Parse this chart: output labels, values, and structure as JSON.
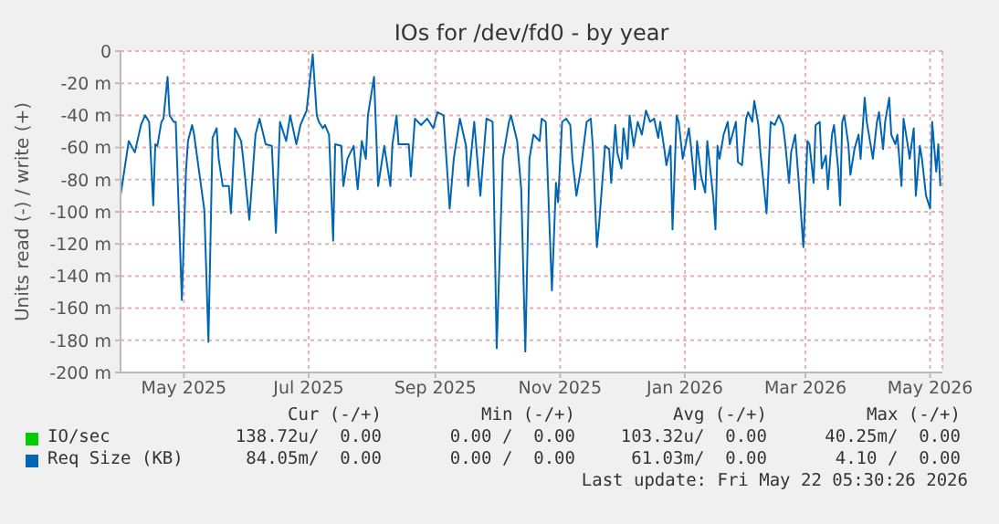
{
  "chart_data": {
    "type": "line",
    "title": "IOs for /dev/fd0 - by year",
    "ylabel": "Units read (-) / write (+)",
    "xlim": [
      "2025-04-15",
      "2026-05-22"
    ],
    "xticks": [
      {
        "value": "2025-05-16",
        "label": "May 2025"
      },
      {
        "value": "2025-07-16",
        "label": "Jul 2025"
      },
      {
        "value": "2025-09-16",
        "label": "Sep 2025"
      },
      {
        "value": "2025-11-16",
        "label": "Nov 2025"
      },
      {
        "value": "2026-01-16",
        "label": "Jan 2026"
      },
      {
        "value": "2026-03-16",
        "label": "Mar 2026"
      },
      {
        "value": "2026-05-16",
        "label": "May 2026"
      }
    ],
    "ylim": [
      -200,
      0
    ],
    "yticks": [
      {
        "value": -200,
        "label": "-200 m"
      },
      {
        "value": -180,
        "label": "-180 m"
      },
      {
        "value": -160,
        "label": "-160 m"
      },
      {
        "value": -140,
        "label": "-140 m"
      },
      {
        "value": -120,
        "label": "-120 m"
      },
      {
        "value": -100,
        "label": "-100 m"
      },
      {
        "value": -80,
        "label": "-80 m"
      },
      {
        "value": -60,
        "label": "-60 m"
      },
      {
        "value": -40,
        "label": "-40 m"
      },
      {
        "value": -20,
        "label": "-20 m"
      },
      0
    ],
    "grid": true,
    "legend": "bottom",
    "marker": "none",
    "line_style": "solid",
    "series": [
      {
        "name": "IO/sec",
        "color": "#00cc00"
      },
      {
        "name": "Req Size (KB)",
        "color": "#0066b3",
        "x": [
          "2025-04-15",
          "2025-04-17",
          "2025-04-19",
          "2025-04-22",
          "2025-04-25",
          "2025-04-27",
          "2025-04-29",
          "2025-05-01",
          "2025-05-02",
          "2025-05-03",
          "2025-05-05",
          "2025-05-06",
          "2025-05-08",
          "2025-05-09",
          "2025-05-11",
          "2025-05-12",
          "2025-05-15",
          "2025-05-17",
          "2025-05-18",
          "2025-05-20",
          "2025-05-21",
          "2025-05-23",
          "2025-05-26",
          "2025-05-28",
          "2025-05-30",
          "2025-06-01",
          "2025-06-02",
          "2025-06-04",
          "2025-06-07",
          "2025-06-08",
          "2025-06-10",
          "2025-06-13",
          "2025-06-14",
          "2025-06-17",
          "2025-06-20",
          "2025-06-22",
          "2025-06-25",
          "2025-06-28",
          "2025-06-30",
          "2025-07-02",
          "2025-07-05",
          "2025-07-07",
          "2025-07-10",
          "2025-07-12",
          "2025-07-15",
          "2025-07-18",
          "2025-07-20",
          "2025-07-21",
          "2025-07-23",
          "2025-07-24",
          "2025-07-26",
          "2025-07-28",
          "2025-07-29",
          "2025-08-01",
          "2025-08-02",
          "2025-08-04",
          "2025-08-07",
          "2025-08-09",
          "2025-08-11",
          "2025-08-13",
          "2025-08-14",
          "2025-08-17",
          "2025-08-19",
          "2025-08-22",
          "2025-08-25",
          "2025-08-26",
          "2025-08-28",
          "2025-08-29",
          "2025-09-03",
          "2025-09-04",
          "2025-09-06",
          "2025-09-09",
          "2025-09-12",
          "2025-09-15",
          "2025-09-17",
          "2025-09-20",
          "2025-09-23",
          "2025-09-25",
          "2025-09-28",
          "2025-10-01",
          "2025-10-02",
          "2025-10-05",
          "2025-10-08",
          "2025-10-11",
          "2025-10-14",
          "2025-10-16",
          "2025-10-19",
          "2025-10-22",
          "2025-10-23",
          "2025-10-26",
          "2025-10-28",
          "2025-10-30",
          "2025-11-01",
          "2025-11-03",
          "2025-11-06",
          "2025-11-07",
          "2025-11-09",
          "2025-11-10",
          "2025-11-12",
          "2025-11-14",
          "2025-11-15",
          "2025-11-17",
          "2025-11-19",
          "2025-11-21",
          "2025-11-22",
          "2025-11-24",
          "2025-11-26",
          "2025-11-29",
          "2025-12-01",
          "2025-12-02",
          "2025-12-04",
          "2025-12-05",
          "2025-12-08",
          "2025-12-10",
          "2025-12-11",
          "2025-12-13",
          "2025-12-14",
          "2025-12-16",
          "2025-12-17",
          "2025-12-19",
          "2025-12-20",
          "2025-12-22",
          "2025-12-24",
          "2025-12-26",
          "2025-12-28",
          "2025-12-30",
          "2026-01-01",
          "2026-01-03",
          "2026-01-04",
          "2026-01-06",
          "2026-01-07",
          "2026-01-09",
          "2026-01-10",
          "2026-01-12",
          "2026-01-13",
          "2026-01-15",
          "2026-01-18",
          "2026-01-19",
          "2026-01-21",
          "2026-01-22",
          "2026-01-24",
          "2026-01-26",
          "2026-01-27",
          "2026-01-30",
          "2026-01-31",
          "2026-02-01",
          "2026-02-02",
          "2026-02-04",
          "2026-02-06",
          "2026-02-07",
          "2026-02-10",
          "2026-02-11",
          "2026-02-13",
          "2026-02-15",
          "2026-02-16",
          "2026-02-18",
          "2026-02-19",
          "2026-02-21",
          "2026-02-22",
          "2026-02-25",
          "2026-02-27",
          "2026-03-01",
          "2026-03-03",
          "2026-03-05",
          "2026-03-06",
          "2026-03-08",
          "2026-03-09",
          "2026-03-11",
          "2026-03-13",
          "2026-03-15",
          "2026-03-17",
          "2026-03-18",
          "2026-03-20",
          "2026-03-21",
          "2026-03-23",
          "2026-03-24",
          "2026-03-26",
          "2026-03-27",
          "2026-03-29",
          "2026-03-30",
          "2026-04-01",
          "2026-04-02",
          "2026-04-03",
          "2026-04-04",
          "2026-04-06",
          "2026-04-07",
          "2026-04-09",
          "2026-04-11",
          "2026-04-12",
          "2026-04-14",
          "2026-04-15",
          "2026-04-17",
          "2026-04-18",
          "2026-04-20",
          "2026-04-21",
          "2026-04-23",
          "2026-04-24",
          "2026-04-26",
          "2026-04-27",
          "2026-04-29",
          "2026-04-30",
          "2026-05-02",
          "2026-05-03",
          "2026-05-05",
          "2026-05-06",
          "2026-05-08",
          "2026-05-09",
          "2026-05-11",
          "2026-05-12",
          "2026-05-14",
          "2026-05-16",
          "2026-05-17",
          "2026-05-19",
          "2026-05-20",
          "2026-05-21"
        ],
        "values": [
          -90,
          -73,
          -56,
          -63,
          -46,
          -40,
          -44,
          -96,
          -58,
          -59,
          -44,
          -42,
          -16,
          -40,
          -44,
          -44,
          -155,
          -75,
          -56,
          -46,
          -52,
          -71,
          -99,
          -181,
          -54,
          -48,
          -67,
          -84,
          -84,
          -101,
          -48,
          -56,
          -67,
          -105,
          -52,
          -42,
          -58,
          -59,
          -113,
          -44,
          -56,
          -40,
          -58,
          -46,
          -37,
          -2,
          -40,
          -44,
          -48,
          -46,
          -52,
          -118,
          -58,
          -59,
          -84,
          -67,
          -59,
          -86,
          -56,
          -67,
          -40,
          -16,
          -84,
          -59,
          -84,
          -58,
          -40,
          -58,
          -58,
          -78,
          -42,
          -46,
          -42,
          -48,
          -38,
          -40,
          -98,
          -67,
          -42,
          -59,
          -84,
          -44,
          -90,
          -42,
          -44,
          -185,
          -67,
          -44,
          -40,
          -56,
          -86,
          -187,
          -67,
          -52,
          -56,
          -42,
          -44,
          -80,
          -149,
          -82,
          -94,
          -44,
          -42,
          -46,
          -67,
          -90,
          -75,
          -44,
          -42,
          -59,
          -122,
          -109,
          -59,
          -61,
          -82,
          -46,
          -63,
          -73,
          -48,
          -67,
          -40,
          -59,
          -44,
          -52,
          -37,
          -44,
          -42,
          -54,
          -44,
          -61,
          -71,
          -59,
          -111,
          -40,
          -44,
          -67,
          -48,
          -59,
          -86,
          -56,
          -78,
          -88,
          -56,
          -92,
          -111,
          -59,
          -67,
          -52,
          -44,
          -58,
          -44,
          -69,
          -71,
          -42,
          -38,
          -44,
          -31,
          -46,
          -63,
          -101,
          -44,
          -46,
          -40,
          -46,
          -56,
          -82,
          -63,
          -52,
          -86,
          -122,
          -56,
          -58,
          -82,
          -46,
          -44,
          -73,
          -65,
          -86,
          -52,
          -46,
          -73,
          -96,
          -44,
          -40,
          -58,
          -77,
          -61,
          -52,
          -67,
          -29,
          -44,
          -59,
          -67,
          -44,
          -38,
          -61,
          -44,
          -29,
          -52,
          -58,
          -52,
          -84,
          -42,
          -58,
          -67,
          -48,
          -90,
          -59,
          -67,
          -90,
          -98,
          -44,
          -75,
          -58,
          -84
        ]
      }
    ],
    "annotations": [
      "Cur (-/+)",
      "Min (-/+)",
      "Avg (-/+)",
      "Max (-/+)",
      "138.72u/  0.00",
      "0.00 /  0.00",
      "103.32u/  0.00",
      "40.25m/  0.00",
      "84.05m/  0.00",
      "0.00 /  0.00",
      "61.03m/  0.00",
      "4.10 /  0.00",
      "Last update: Fri May 22 05:30:26 2026"
    ]
  }
}
